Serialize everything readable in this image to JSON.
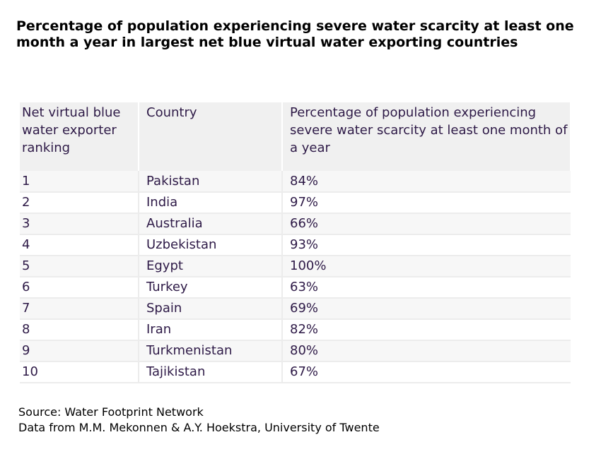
{
  "title": "Percentage of population experiencing severe water scarcity at least one month a year in largest net blue virtual water exporting countries",
  "table": {
    "headers": [
      "Net virtual blue water exporter ranking",
      "Country",
      "Percentage of population experiencing severe water scarcity at least one month of a year"
    ],
    "rows": [
      {
        "rank": "1",
        "country": "Pakistan",
        "percent": "84%"
      },
      {
        "rank": "2",
        "country": "India",
        "percent": "97%"
      },
      {
        "rank": "3",
        "country": "Australia",
        "percent": "66%"
      },
      {
        "rank": "4",
        "country": "Uzbekistan",
        "percent": "93%"
      },
      {
        "rank": "5",
        "country": "Egypt",
        "percent": "100%"
      },
      {
        "rank": "6",
        "country": "Turkey",
        "percent": "63%"
      },
      {
        "rank": "7",
        "country": "Spain",
        "percent": "69%"
      },
      {
        "rank": "8",
        "country": "Iran",
        "percent": "82%"
      },
      {
        "rank": "9",
        "country": "Turkmenistan",
        "percent": "80%"
      },
      {
        "rank": "10",
        "country": "Tajikistan",
        "percent": "67%"
      }
    ]
  },
  "source": {
    "line1": "Source: Water Footprint Network",
    "line2": "Data from M.M. Mekonnen & A.Y. Hoekstra, University of Twente"
  },
  "colors": {
    "text": "#2e1a47",
    "header_bg": "#f0f0f0",
    "row_alt_bg": "#f7f7f7"
  }
}
